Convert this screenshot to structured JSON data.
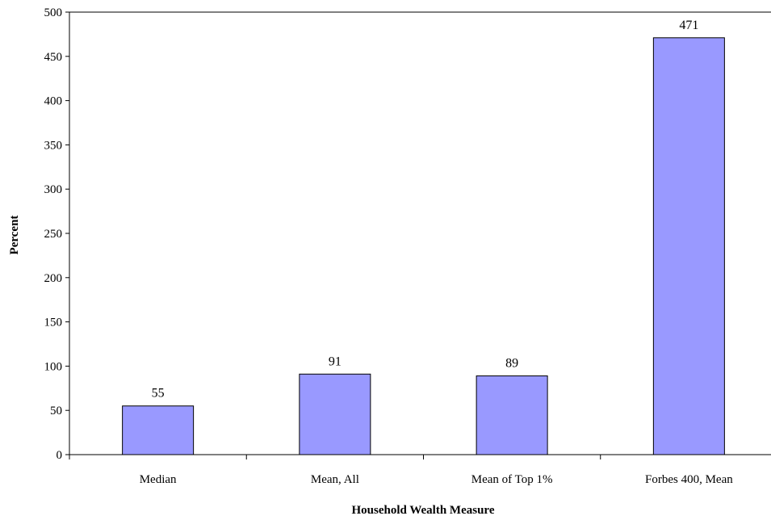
{
  "chart_data": {
    "type": "bar",
    "title": "",
    "xlabel": "Household Wealth Measure",
    "ylabel": "Percent",
    "categories": [
      "Median",
      "Mean, All",
      "Mean of Top 1%",
      "Forbes 400, Mean"
    ],
    "values": [
      55,
      91,
      89,
      471
    ],
    "data_labels": [
      "55",
      "91",
      "89",
      "471"
    ],
    "ylim": [
      0,
      500
    ],
    "y_ticks": [
      0,
      50,
      100,
      150,
      200,
      250,
      300,
      350,
      400,
      450,
      500
    ],
    "grid": false,
    "legend": "none",
    "bar_color": "#9999ff",
    "bar_edge_color": "#000000"
  }
}
